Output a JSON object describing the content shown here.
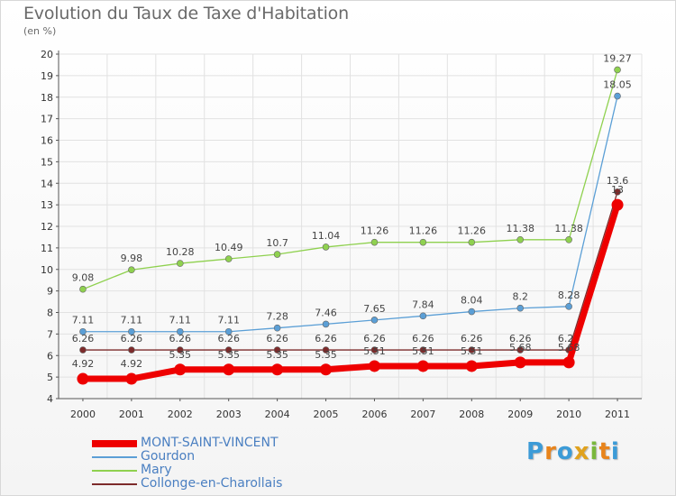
{
  "title": "Evolution du Taux de Taxe d'Habitation",
  "subtitle": "(en %)",
  "brand": {
    "letters": [
      "P",
      "r",
      "o",
      "x",
      "i",
      "t",
      "i"
    ],
    "colors": [
      "#3c9bd7",
      "#e8841c",
      "#3c9bd7",
      "#e0a21e",
      "#7ab83c",
      "#e8841c",
      "#3c9bd7"
    ]
  },
  "chart_data": {
    "type": "line",
    "title": "Evolution du Taux de Taxe d'Habitation",
    "subtitle": "(en %)",
    "xlabel": "",
    "ylabel": "",
    "x": [
      "2000",
      "2001",
      "2002",
      "2003",
      "2004",
      "2005",
      "2006",
      "2007",
      "2008",
      "2009",
      "2010",
      "2011"
    ],
    "ylim": [
      4,
      20
    ],
    "yticks": [
      "4",
      "5",
      "6",
      "7",
      "8",
      "9",
      "10",
      "11",
      "12",
      "13",
      "14",
      "15",
      "16",
      "17",
      "18",
      "19",
      "20"
    ],
    "grid": true,
    "legend_position": "bottom-left",
    "series": [
      {
        "name": "Collonge-en-Charollais",
        "color": "#7d2b2b",
        "values": [
          6.26,
          6.26,
          6.26,
          6.26,
          6.26,
          6.26,
          6.26,
          6.26,
          6.26,
          6.26,
          6.26,
          13.6
        ],
        "labels": [
          "6.26",
          "6.26",
          "6.26",
          "6.26",
          "6.26",
          "6.26",
          "6.26",
          "6.26",
          "6.26",
          "6.26",
          "6.26",
          "13.6"
        ]
      },
      {
        "name": "Mary",
        "color": "#8fd14f",
        "values": [
          9.08,
          9.98,
          10.28,
          10.49,
          10.7,
          11.04,
          11.26,
          11.26,
          11.26,
          11.38,
          11.38,
          19.27
        ],
        "labels": [
          "9.08",
          "9.98",
          "10.28",
          "10.49",
          "10.7",
          "11.04",
          "11.26",
          "11.26",
          "11.26",
          "11.38",
          "11.38",
          "19.27"
        ]
      },
      {
        "name": "Gourdon",
        "color": "#5b9fd6",
        "values": [
          7.11,
          7.11,
          7.11,
          7.11,
          7.28,
          7.46,
          7.65,
          7.84,
          8.04,
          8.2,
          8.28,
          18.05
        ],
        "labels": [
          "7.11",
          "7.11",
          "7.11",
          "7.11",
          "7.28",
          "7.46",
          "7.65",
          "7.84",
          "8.04",
          "8.2",
          "8.28",
          "18.05"
        ]
      },
      {
        "name": "MONT-SAINT-VINCENT",
        "color": "#ee0000",
        "values": [
          4.92,
          4.92,
          5.35,
          5.35,
          5.35,
          5.35,
          5.51,
          5.51,
          5.51,
          5.68,
          5.68,
          13
        ],
        "labels": [
          "4.92",
          "4.92",
          "5.35",
          "5.35",
          "5.35",
          "5.35",
          "5.51",
          "5.51",
          "5.51",
          "5.68",
          "5.68",
          "13"
        ]
      }
    ],
    "legend": [
      {
        "name": "MONT-SAINT-VINCENT",
        "color": "#ee0000",
        "bold": true
      },
      {
        "name": "Gourdon",
        "color": "#5b9fd6",
        "bold": false
      },
      {
        "name": "Mary",
        "color": "#8fd14f",
        "bold": false
      },
      {
        "name": "Collonge-en-Charollais",
        "color": "#7d2b2b",
        "bold": false
      }
    ]
  }
}
